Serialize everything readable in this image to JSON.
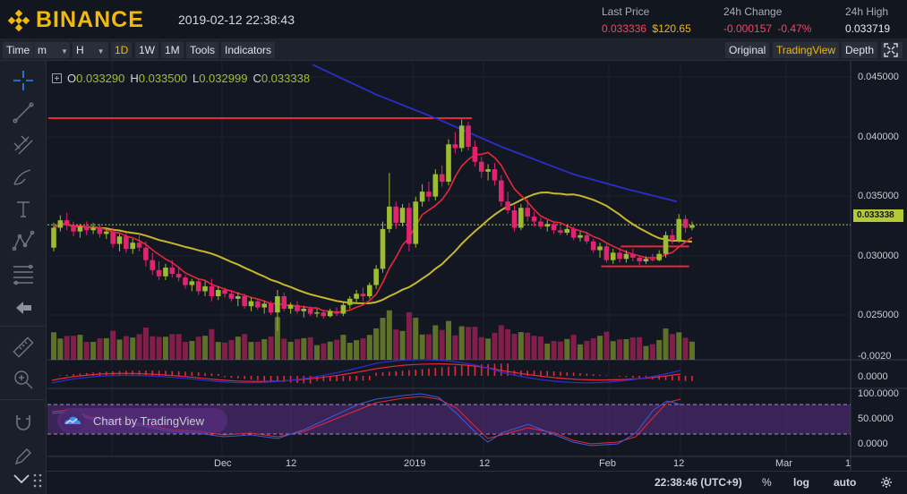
{
  "header": {
    "brand": "BINANCE",
    "datetime": "2019-02-12 22:38:43",
    "last_price_label": "Last Price",
    "last_price_value": "0.033336",
    "last_price_usd": "$120.65",
    "change_label": "24h Change",
    "change_value": "-0.000157",
    "change_pct": "-0.47%",
    "high_label": "24h High",
    "high_value": "0.033719"
  },
  "toolbar": {
    "time_label": "Time",
    "minute_label": "m",
    "hour_label": "H",
    "intervals": [
      "1D",
      "1W",
      "1M"
    ],
    "active_interval": "1D",
    "tools_label": "Tools",
    "indicators_label": "Indicators",
    "views": [
      "Original",
      "TradingView",
      "Depth"
    ],
    "active_view": "TradingView"
  },
  "ohlc": {
    "o_label": "O",
    "o": "0.033290",
    "h_label": "H",
    "h": "0.033500",
    "l_label": "L",
    "l": "0.032999",
    "c_label": "C",
    "c": "0.033338"
  },
  "price_axis": {
    "ticks": [
      "0.045000",
      "0.040000",
      "0.035000",
      "0.030000",
      "0.025000"
    ],
    "current_price": "0.033338",
    "macd_ticks": [
      "0.0000",
      "-0.0020"
    ],
    "rsi_ticks": [
      "100.0000",
      "50.0000",
      "0.0000"
    ]
  },
  "time_axis": {
    "ticks": [
      "Dec",
      "12",
      "2019",
      "12",
      "Feb",
      "12",
      "Mar",
      "1"
    ]
  },
  "footer": {
    "clock": "22:38:46 (UTC+9)",
    "percent_label": "%",
    "log_label": "log",
    "auto_label": "auto"
  },
  "watermark": {
    "text": "Chart by TradingView"
  },
  "colors": {
    "bull": "#9bbd2e",
    "bear": "#e0256e",
    "ma_short": "#e5283a",
    "ma_mid": "#c6b82a",
    "ma_long": "#2b2ec9",
    "brand": "#f0b90b"
  },
  "chart_data": {
    "type": "candlestick",
    "interval": "1D",
    "y_scale": [
      0.0225,
      0.0465
    ],
    "candles": [
      [
        0.0315,
        0.0335,
        0.0312,
        0.0331
      ],
      [
        0.0331,
        0.0341,
        0.0328,
        0.0337
      ],
      [
        0.0337,
        0.0343,
        0.0329,
        0.0333
      ],
      [
        0.0333,
        0.0336,
        0.0324,
        0.0328
      ],
      [
        0.0328,
        0.0334,
        0.0323,
        0.0332
      ],
      [
        0.0332,
        0.0336,
        0.0325,
        0.0329
      ],
      [
        0.0329,
        0.0335,
        0.0326,
        0.0331
      ],
      [
        0.0331,
        0.0334,
        0.0323,
        0.0326
      ],
      [
        0.0326,
        0.0331,
        0.0322,
        0.0328
      ],
      [
        0.0328,
        0.0331,
        0.0315,
        0.0318
      ],
      [
        0.0318,
        0.0326,
        0.0312,
        0.0324
      ],
      [
        0.0324,
        0.0327,
        0.0311,
        0.0314
      ],
      [
        0.0314,
        0.0322,
        0.031,
        0.0319
      ],
      [
        0.0319,
        0.0326,
        0.0312,
        0.0315
      ],
      [
        0.0315,
        0.032,
        0.03,
        0.0305
      ],
      [
        0.0305,
        0.0311,
        0.0293,
        0.0297
      ],
      [
        0.0297,
        0.0304,
        0.0289,
        0.0292
      ],
      [
        0.0292,
        0.0302,
        0.0289,
        0.0299
      ],
      [
        0.0299,
        0.0305,
        0.0291,
        0.0294
      ],
      [
        0.0294,
        0.03,
        0.0288,
        0.0291
      ],
      [
        0.0291,
        0.0293,
        0.0282,
        0.0285
      ],
      [
        0.0285,
        0.029,
        0.028,
        0.0288
      ],
      [
        0.0288,
        0.029,
        0.0277,
        0.028
      ],
      [
        0.028,
        0.0288,
        0.0276,
        0.0284
      ],
      [
        0.0284,
        0.029,
        0.0272,
        0.0276
      ],
      [
        0.0276,
        0.0284,
        0.0273,
        0.0281
      ],
      [
        0.0281,
        0.0283,
        0.0275,
        0.0278
      ],
      [
        0.0278,
        0.0281,
        0.0272,
        0.0274
      ],
      [
        0.0274,
        0.0279,
        0.0268,
        0.0276
      ],
      [
        0.0276,
        0.0278,
        0.0266,
        0.0268
      ],
      [
        0.0268,
        0.0275,
        0.0264,
        0.0272
      ],
      [
        0.0272,
        0.0274,
        0.0265,
        0.0267
      ],
      [
        0.0267,
        0.0272,
        0.0262,
        0.027
      ],
      [
        0.027,
        0.0272,
        0.0261,
        0.0263
      ],
      [
        0.0263,
        0.0281,
        0.0248,
        0.0276
      ],
      [
        0.0276,
        0.0279,
        0.0264,
        0.0266
      ],
      [
        0.0266,
        0.0271,
        0.0262,
        0.0269
      ],
      [
        0.0269,
        0.0272,
        0.0262,
        0.0264
      ],
      [
        0.0264,
        0.0268,
        0.0259,
        0.0266
      ],
      [
        0.0266,
        0.0268,
        0.026,
        0.0262
      ],
      [
        0.0262,
        0.0266,
        0.0259,
        0.0263
      ],
      [
        0.0263,
        0.0265,
        0.0258,
        0.026
      ],
      [
        0.026,
        0.0266,
        0.0259,
        0.0264
      ],
      [
        0.0264,
        0.0267,
        0.026,
        0.0262
      ],
      [
        0.0262,
        0.0271,
        0.026,
        0.0269
      ],
      [
        0.0269,
        0.0276,
        0.0266,
        0.0274
      ],
      [
        0.0274,
        0.0281,
        0.027,
        0.0278
      ],
      [
        0.0278,
        0.0283,
        0.0272,
        0.0276
      ],
      [
        0.0276,
        0.0287,
        0.0274,
        0.0285
      ],
      [
        0.0285,
        0.0301,
        0.0282,
        0.0298
      ],
      [
        0.0298,
        0.0336,
        0.0295,
        0.033
      ],
      [
        0.033,
        0.0375,
        0.0327,
        0.0348
      ],
      [
        0.0348,
        0.0352,
        0.033,
        0.0335
      ],
      [
        0.0335,
        0.035,
        0.0332,
        0.0347
      ],
      [
        0.0347,
        0.0351,
        0.0312,
        0.0318
      ],
      [
        0.0318,
        0.0356,
        0.0315,
        0.0352
      ],
      [
        0.0352,
        0.0366,
        0.0348,
        0.036
      ],
      [
        0.036,
        0.0368,
        0.0352,
        0.0356
      ],
      [
        0.0356,
        0.0378,
        0.0353,
        0.0374
      ],
      [
        0.0374,
        0.0381,
        0.0364,
        0.0368
      ],
      [
        0.0368,
        0.0402,
        0.0365,
        0.0398
      ],
      [
        0.0398,
        0.0408,
        0.0391,
        0.0395
      ],
      [
        0.0395,
        0.0418,
        0.0392,
        0.0413
      ],
      [
        0.0413,
        0.0416,
        0.0393,
        0.0396
      ],
      [
        0.0396,
        0.0401,
        0.038,
        0.0384
      ],
      [
        0.0384,
        0.0388,
        0.0371,
        0.0376
      ],
      [
        0.0376,
        0.0382,
        0.0369,
        0.0378
      ],
      [
        0.0378,
        0.0383,
        0.0365,
        0.0369
      ],
      [
        0.0369,
        0.0373,
        0.0348,
        0.0352
      ],
      [
        0.0352,
        0.036,
        0.0342,
        0.0345
      ],
      [
        0.0345,
        0.0349,
        0.0328,
        0.0331
      ],
      [
        0.0331,
        0.035,
        0.0329,
        0.0347
      ],
      [
        0.0347,
        0.0354,
        0.0336,
        0.034
      ],
      [
        0.034,
        0.0344,
        0.0332,
        0.0336
      ],
      [
        0.0336,
        0.0339,
        0.033,
        0.0332
      ],
      [
        0.0332,
        0.0337,
        0.0328,
        0.0334
      ],
      [
        0.0334,
        0.0336,
        0.0326,
        0.0329
      ],
      [
        0.0329,
        0.0332,
        0.0325,
        0.0327
      ],
      [
        0.0327,
        0.0333,
        0.0325,
        0.033
      ],
      [
        0.033,
        0.0332,
        0.0321,
        0.0323
      ],
      [
        0.0323,
        0.0328,
        0.032,
        0.0325
      ],
      [
        0.0325,
        0.0328,
        0.0318,
        0.032
      ],
      [
        0.032,
        0.0322,
        0.0311,
        0.0313
      ],
      [
        0.0313,
        0.0319,
        0.0307,
        0.0316
      ],
      [
        0.0316,
        0.0318,
        0.0303,
        0.0305
      ],
      [
        0.0305,
        0.0314,
        0.0302,
        0.0311
      ],
      [
        0.0311,
        0.0315,
        0.0303,
        0.0306
      ],
      [
        0.0306,
        0.0313,
        0.0303,
        0.031
      ],
      [
        0.031,
        0.0314,
        0.0304,
        0.0307
      ],
      [
        0.0307,
        0.0309,
        0.0301,
        0.0304
      ],
      [
        0.0304,
        0.0308,
        0.0302,
        0.0306
      ],
      [
        0.0306,
        0.031,
        0.0304,
        0.0305
      ],
      [
        0.0305,
        0.0313,
        0.0304,
        0.031
      ],
      [
        0.031,
        0.0328,
        0.0307,
        0.0325
      ],
      [
        0.0325,
        0.033,
        0.0318,
        0.0321
      ],
      [
        0.0321,
        0.0342,
        0.0319,
        0.0338
      ],
      [
        0.0338,
        0.0341,
        0.0327,
        0.0331
      ],
      [
        0.0331,
        0.0336,
        0.0329,
        0.0333
      ]
    ],
    "horizontal_lines": [
      {
        "price": 0.0419,
        "from_index": 0,
        "to_index": 63
      },
      {
        "price": 0.03,
        "from_index": 84,
        "to_index": 96
      },
      {
        "price": 0.0316,
        "from_index": 87,
        "to_index": 96
      }
    ],
    "current_price_line": 0.033338
  }
}
